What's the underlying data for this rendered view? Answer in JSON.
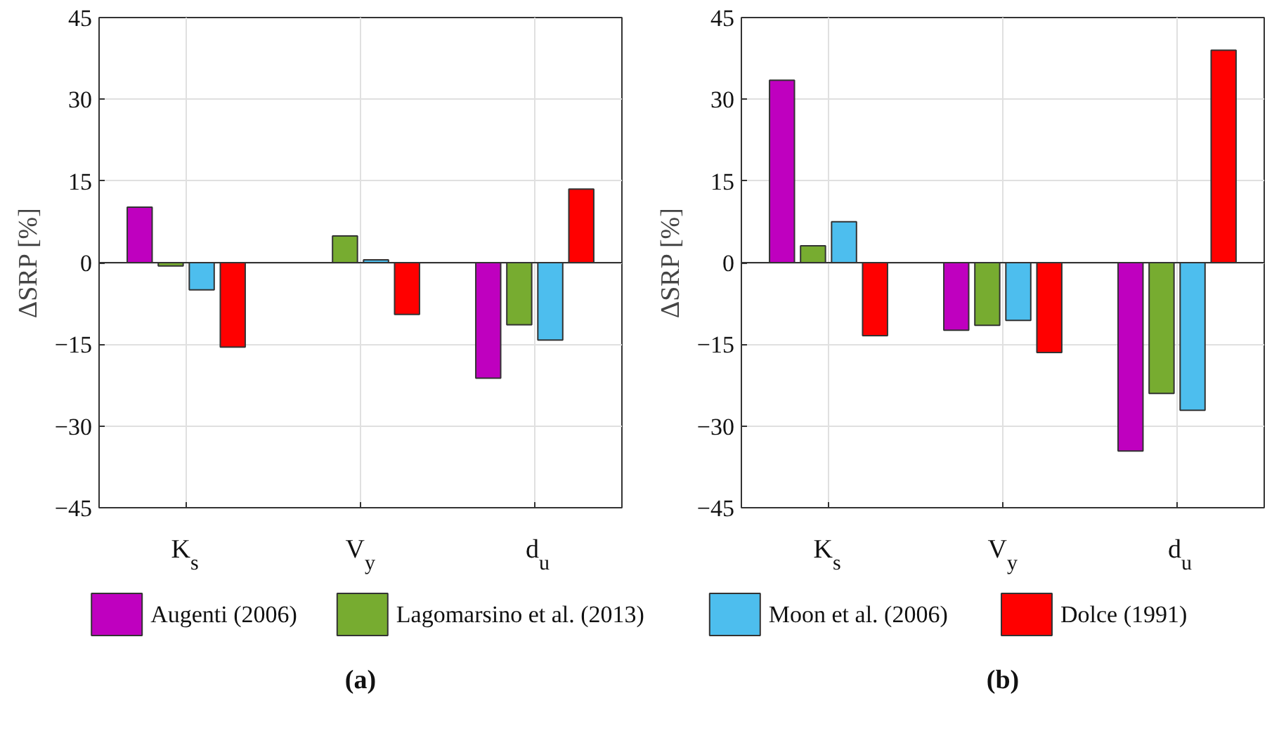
{
  "chart_data": [
    {
      "type": "bar",
      "title": "(a)",
      "ylabel": "ΔSRP [%]",
      "categories": [
        "K$_{s}$",
        "V$_{y}$",
        "d$_{u}$"
      ],
      "series": [
        {
          "name": "Augenti (2006)",
          "color": "#bf00bf",
          "values": [
            10.2,
            0,
            -21.2
          ]
        },
        {
          "name": "Lagomarsino et al. (2013)",
          "color": "#77ac30",
          "values": [
            -0.6,
            4.9,
            -11.4
          ]
        },
        {
          "name": "Moon et al. (2006)",
          "color": "#4dbeee",
          "values": [
            -5.0,
            0.5,
            -14.2
          ]
        },
        {
          "name": "Dolce (1991)",
          "color": "#ff0000",
          "values": [
            -15.5,
            -9.5,
            13.5
          ]
        }
      ],
      "ylim": [
        -45,
        45
      ],
      "yticks": [
        -45,
        -30,
        -15,
        0,
        15,
        30,
        45
      ],
      "grid": true,
      "legend": "bottom"
    },
    {
      "type": "bar",
      "title": "(b)",
      "ylabel": "ΔSRP [%]",
      "categories": [
        "K$_{s}$",
        "V$_{y}$",
        "d$_{u}$"
      ],
      "series": [
        {
          "color": "#bf00bf",
          "values": [
            33.5,
            -12.4,
            -34.6
          ]
        },
        {
          "color": "#77ac30",
          "values": [
            3.1,
            -11.5,
            -24.0
          ]
        },
        {
          "color": "#4dbeee",
          "values": [
            7.5,
            -10.6,
            -27.1
          ]
        },
        {
          "color": "#ff0000",
          "values": [
            -13.4,
            -16.5,
            39.0
          ]
        }
      ],
      "ylim": [
        -45,
        45
      ],
      "yticks": [
        -45,
        -30,
        -15,
        0,
        15,
        30,
        45
      ],
      "grid": true
    }
  ]
}
